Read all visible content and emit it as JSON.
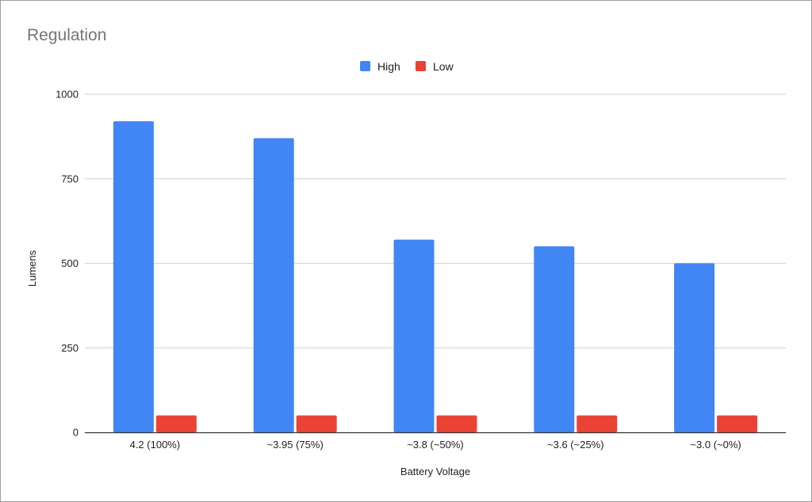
{
  "chart_data": {
    "type": "bar",
    "title": "Regulation",
    "xlabel": "Battery Voltage",
    "ylabel": "Lumens",
    "categories": [
      "4.2 (100%)",
      "~3.95 (75%)",
      "~3.8 (~50%)",
      "~3.6 (~25%)",
      "~3.0 (~0%)"
    ],
    "series": [
      {
        "name": "High",
        "color": "#4285f4",
        "values": [
          920,
          870,
          570,
          550,
          500
        ]
      },
      {
        "name": "Low",
        "color": "#ea4335",
        "values": [
          50,
          50,
          50,
          50,
          50
        ]
      }
    ],
    "ylim": [
      0,
      1000
    ],
    "yticks": [
      "0",
      "250",
      "500",
      "750",
      "1000"
    ],
    "legend_position": "top-center",
    "grid": true,
    "gridline_color": "#d0d0d0",
    "axis_color": "#333333"
  }
}
